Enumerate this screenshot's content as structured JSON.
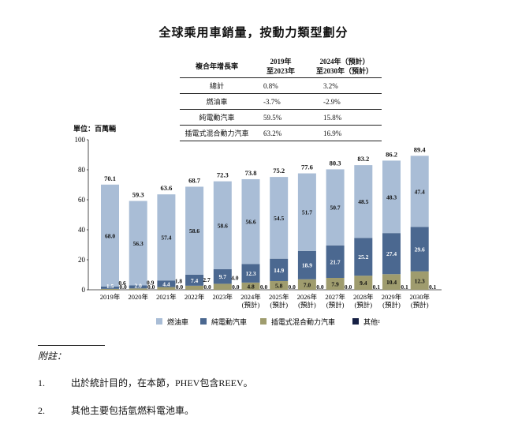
{
  "title": "全球乘用車銷量，按動力類型劃分",
  "cagr_table": {
    "header": [
      "複合年增長率",
      "2019年\n至2023年",
      "2024年（預計）\n至2030年（預計）"
    ],
    "rows": [
      {
        "label": "總計",
        "v1": "0.8%",
        "v2": "3.2%"
      },
      {
        "label": "燃油車",
        "v1": "-3.7%",
        "v2": "-2.9%"
      },
      {
        "label": "純電動汽車",
        "v1": "59.5%",
        "v2": "15.8%"
      },
      {
        "label": "插電式混合動力汽車",
        "v1": "63.2%",
        "v2": "16.9%"
      }
    ]
  },
  "unit_label": "單位：百萬輛",
  "colors": {
    "ice": "#a9bdd6",
    "bev": "#4b6890",
    "phev": "#9f9c6e",
    "other": "#162044"
  },
  "chart_data": {
    "type": "bar",
    "stacked": true,
    "ylim": [
      0,
      100
    ],
    "yticks": [
      0,
      20,
      40,
      60,
      80,
      100
    ],
    "categories": [
      "2019年",
      "2020年",
      "2021年",
      "2022年",
      "2023年",
      "2024年\n(預計)",
      "2025年\n(預計)",
      "2026年\n(預計)",
      "2027年\n(預計)",
      "2028年\n(預計)",
      "2029年\n(預計)",
      "2030年\n(預計)"
    ],
    "totals": [
      "70.1",
      "59.3",
      "63.6",
      "68.7",
      "72.3",
      "73.8",
      "75.2",
      "77.6",
      "80.3",
      "83.2",
      "86.2",
      "89.4"
    ],
    "series": [
      {
        "name": "燃油車",
        "key": "ice",
        "values": [
          68.0,
          56.3,
          57.4,
          58.6,
          58.6,
          56.6,
          54.5,
          51.7,
          50.7,
          48.5,
          48.3,
          47.4
        ],
        "labels": [
          "68.0",
          "56.3",
          "57.4",
          "58.6",
          "58.6",
          "56.6",
          "54.5",
          "51.7",
          "50.7",
          "48.5",
          "48.3",
          "47.4"
        ]
      },
      {
        "name": "純電動汽車",
        "key": "bev",
        "values": [
          1.5,
          2.0,
          4.4,
          7.4,
          9.7,
          12.3,
          14.9,
          18.9,
          21.7,
          25.2,
          27.4,
          29.6
        ],
        "labels": [
          "1.5",
          "2.0",
          "4.4",
          "7.4",
          "9.7",
          "12.3",
          "14.9",
          "18.9",
          "21.7",
          "25.2",
          "27.4",
          "29.6"
        ]
      },
      {
        "name": "插電式混合動力汽車",
        "key": "phev",
        "values": [
          0.6,
          0.9,
          1.8,
          2.7,
          4.0,
          4.8,
          5.8,
          7.0,
          7.9,
          9.4,
          10.4,
          12.3
        ],
        "labels": [
          "0.6",
          "0.9",
          "1.8",
          "2.7",
          "4.0",
          "4.8",
          "5.8",
          "7.0",
          "7.9",
          "9.4",
          "10.4",
          "12.3"
        ]
      },
      {
        "name": "其他²",
        "key": "other",
        "values": [
          0.0,
          0.0,
          0.0,
          0.0,
          0.0,
          0.0,
          0.0,
          0.0,
          0.0,
          0.1,
          0.1,
          0.1
        ],
        "labels": [
          "0.0",
          "0.0",
          "0.0",
          "0.0",
          "0.0",
          "0.0",
          "0.0",
          "0.0",
          "0.0",
          "0.1",
          "0.1",
          "0.1"
        ]
      }
    ]
  },
  "notes": {
    "heading": "附註：",
    "items": [
      {
        "num": "1.",
        "text": "出於統計目的，在本節，PHEV包含REEV。"
      },
      {
        "num": "2.",
        "text": "其他主要包括氫燃料電池車。"
      }
    ]
  }
}
